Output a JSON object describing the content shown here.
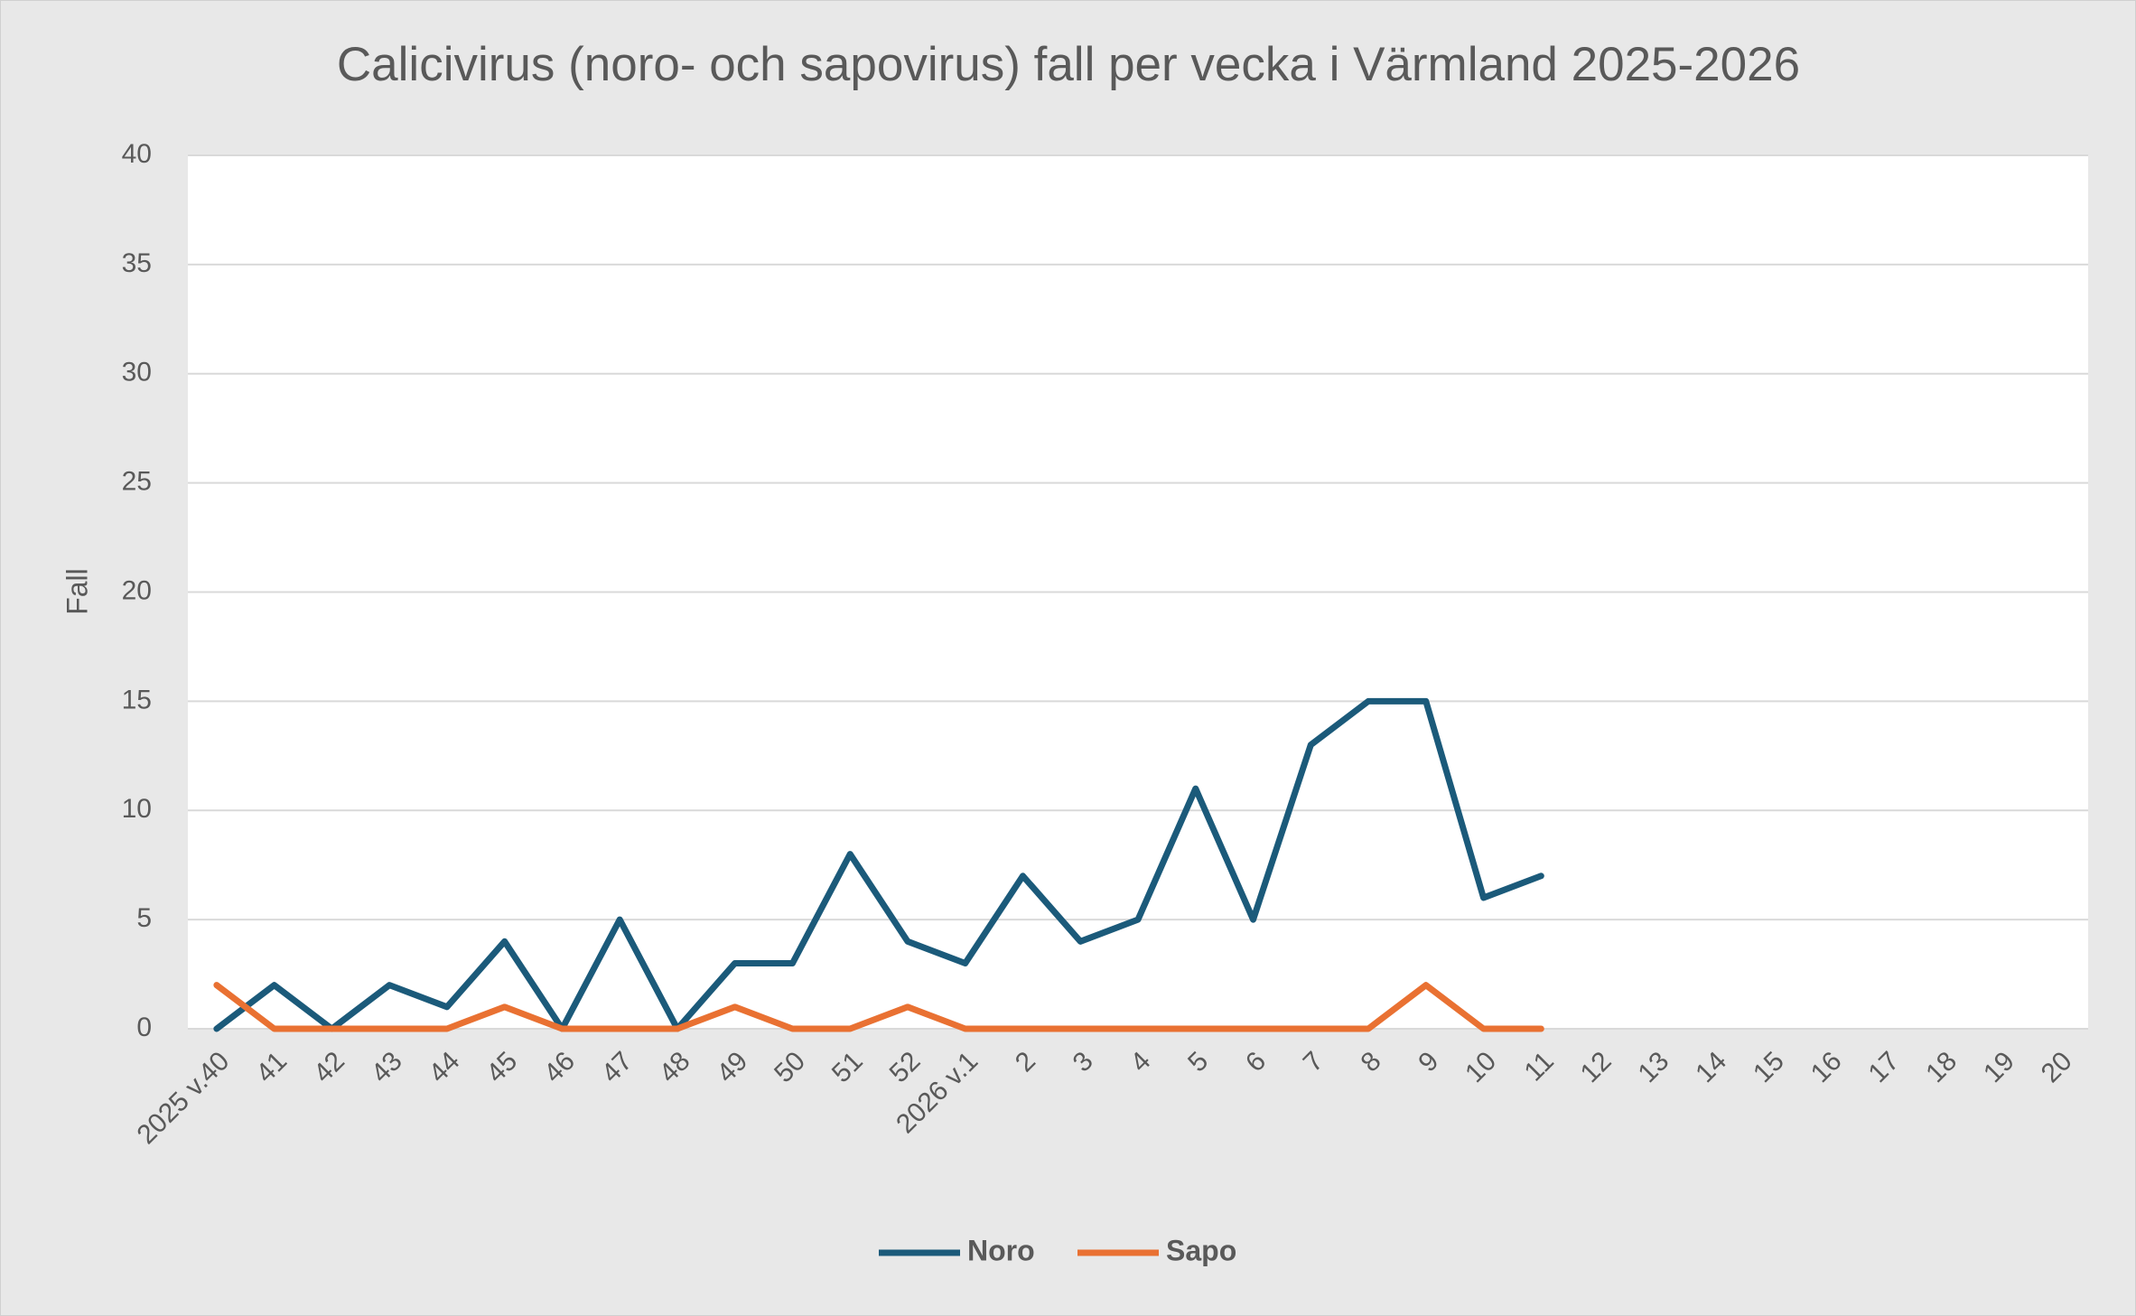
{
  "chart_data": {
    "type": "line",
    "title": "Calicivirus (noro- och sapovirus) fall per vecka i Värmland 2025-2026",
    "y_label": "Fall",
    "categories": [
      "2025 v.40",
      "41",
      "42",
      "43",
      "44",
      "45",
      "46",
      "47",
      "48",
      "49",
      "50",
      "51",
      "52",
      "2026 v.1",
      "2",
      "3",
      "4",
      "5",
      "6",
      "7",
      "8",
      "9",
      "10",
      "11",
      "12",
      "13",
      "14",
      "15",
      "16",
      "17",
      "18",
      "19",
      "20"
    ],
    "series": [
      {
        "name": "Noro",
        "color": "#1b5a7a",
        "values": [
          0,
          2,
          0,
          2,
          1,
          4,
          0,
          5,
          0,
          3,
          3,
          8,
          4,
          3,
          7,
          4,
          5,
          11,
          5,
          13,
          15,
          15,
          6,
          7,
          null,
          null,
          null,
          null,
          null,
          null,
          null,
          null,
          null
        ]
      },
      {
        "name": "Sapo",
        "color": "#e97132",
        "values": [
          2,
          0,
          0,
          0,
          0,
          1,
          0,
          0,
          0,
          1,
          0,
          0,
          1,
          0,
          0,
          0,
          0,
          0,
          0,
          0,
          0,
          2,
          0,
          0,
          null,
          null,
          null,
          null,
          null,
          null,
          null,
          null,
          null
        ]
      }
    ],
    "ylim": [
      0,
      40
    ],
    "yticks": [
      0,
      5,
      10,
      15,
      20,
      25,
      30,
      35,
      40
    ],
    "grid": true,
    "legend": "bottom"
  }
}
